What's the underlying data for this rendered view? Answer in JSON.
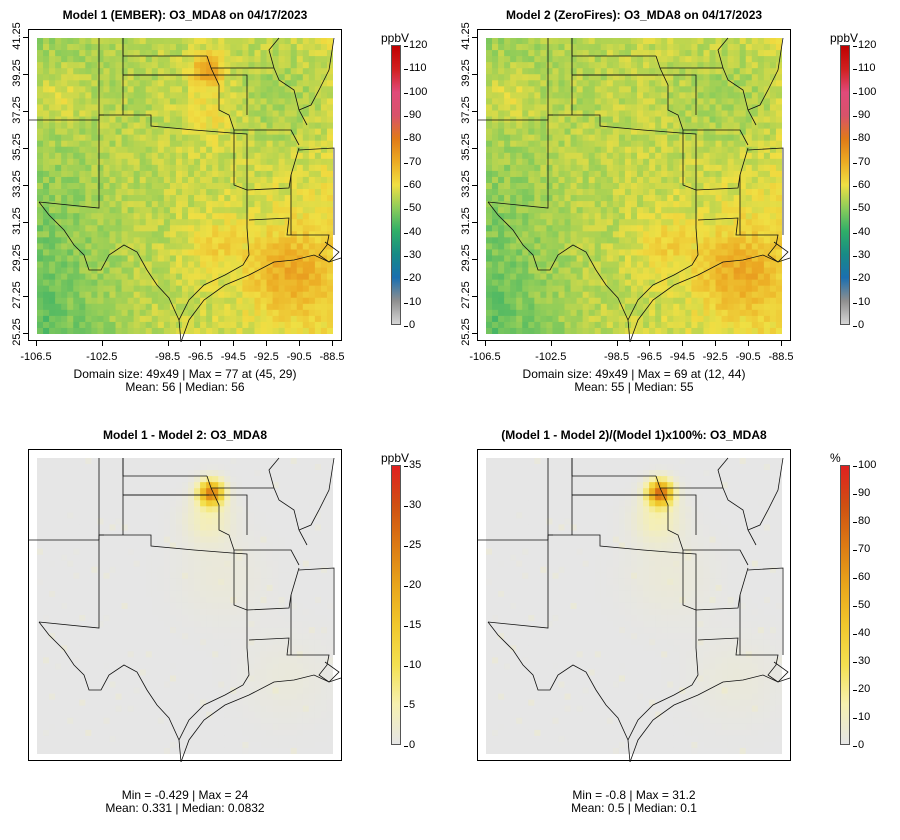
{
  "panels": [
    {
      "title": "Model 1 (EMBER): O3_MDA8 on 04/17/2023",
      "stats_line1": "Domain size: 49x49 | Max = 77 at (45, 29)",
      "stats_line2": "Mean: 56 |  Median: 56",
      "unit": "ppbV",
      "scale_ticks": [
        "120",
        "110",
        "100",
        "90",
        "80",
        "70",
        "60",
        "50",
        "40",
        "30",
        "20",
        "10",
        "0"
      ],
      "variant": "conc1",
      "show_axes": true
    },
    {
      "title": "Model 2 (ZeroFires): O3_MDA8 on 04/17/2023",
      "stats_line1": "Domain size: 49x49 | Max = 69 at (12, 44)",
      "stats_line2": "Mean: 55 |  Median: 55",
      "unit": "ppbV",
      "scale_ticks": [
        "120",
        "110",
        "100",
        "90",
        "80",
        "70",
        "60",
        "50",
        "40",
        "30",
        "20",
        "10",
        "0"
      ],
      "variant": "conc2",
      "show_axes": true
    },
    {
      "title": "Model 1 - Model 2: O3_MDA8",
      "stats_line1": "Min = -0.429 | Max = 24",
      "stats_line2": "Mean: 0.331 |  Median: 0.0832",
      "unit": "ppbV",
      "scale_ticks": [
        "35",
        "30",
        "25",
        "20",
        "15",
        "10",
        "5",
        "0"
      ],
      "variant": "diff",
      "show_axes": false
    },
    {
      "title": "(Model 1 - Model 2)/(Model 1)x100%: O3_MDA8",
      "stats_line1": "Min = -0.8 | Max = 31.2",
      "stats_line2": "Mean: 0.5 |  Median: 0.1",
      "unit": "%",
      "scale_ticks": [
        "100",
        "90",
        "80",
        "70",
        "60",
        "50",
        "40",
        "30",
        "20",
        "10",
        "0"
      ],
      "variant": "pct",
      "show_axes": false
    }
  ],
  "axes": {
    "y_ticks": [
      "41.25",
      "39.25",
      "37.25",
      "35.25",
      "33.25",
      "31.25",
      "29.25",
      "27.25",
      "25.25"
    ],
    "x_ticks": [
      "-106.5",
      "-102.5",
      "-98.5",
      "-96.5",
      "-94.5",
      "-92.5",
      "-90.5",
      "-88.5"
    ]
  },
  "colors": {
    "conc_scale": [
      "#d6d6d6",
      "#8f8f8f",
      "#1a6fb0",
      "#178a86",
      "#2fae68",
      "#8ccc5a",
      "#f0df43",
      "#ecab23",
      "#e07a18",
      "#d8526a",
      "#e04a7a",
      "#d12020",
      "#c00000"
    ],
    "diff_scale": [
      "#e6e6e6",
      "#f6f0b0",
      "#f3e050",
      "#f0c72c",
      "#e8a51b",
      "#dc7a14",
      "#cf5012",
      "#e02020"
    ]
  }
}
